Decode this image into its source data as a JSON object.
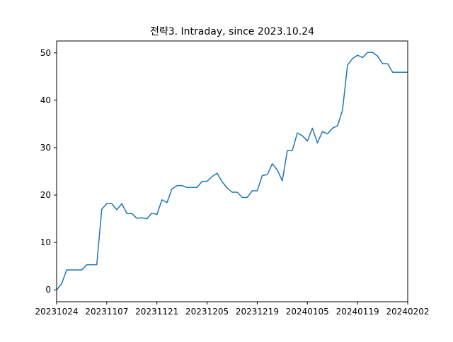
{
  "chart_data": {
    "type": "line",
    "title": "전략3. Intraday, since 2023.10.24",
    "xlabel": "",
    "ylabel": "",
    "x_tick_labels": [
      "20231024",
      "20231107",
      "20231121",
      "20231205",
      "20231219",
      "20240105",
      "20240119",
      "20240202"
    ],
    "y_ticks": [
      0,
      10,
      20,
      30,
      40,
      50
    ],
    "xlim": [
      0,
      70
    ],
    "ylim": [
      -2.5,
      52.5
    ],
    "grid": false,
    "line_color": "#1f77b4",
    "series": [
      {
        "values": [
          0,
          1.3,
          4.2,
          4.2,
          4.2,
          4.2,
          5.3,
          5.3,
          5.3,
          17.0,
          18.2,
          18.2,
          16.9,
          18.2,
          16.1,
          16.1,
          15.1,
          15.2,
          15.0,
          16.2,
          15.9,
          19.0,
          18.4,
          21.3,
          22.0,
          22.0,
          21.6,
          21.6,
          21.6,
          22.9,
          22.9,
          23.9,
          24.6,
          22.8,
          21.5,
          20.6,
          20.6,
          19.5,
          19.5,
          20.9,
          20.9,
          24.1,
          24.3,
          26.6,
          25.3,
          23.0,
          29.4,
          29.4,
          33.1,
          32.5,
          31.4,
          34.1,
          31.0,
          33.4,
          32.9,
          34.1,
          34.6,
          37.9,
          47.4,
          48.8,
          49.5,
          49.0,
          50.1,
          50.1,
          49.3,
          47.7,
          47.7,
          45.9,
          45.9,
          45.9,
          45.9
        ]
      }
    ]
  }
}
